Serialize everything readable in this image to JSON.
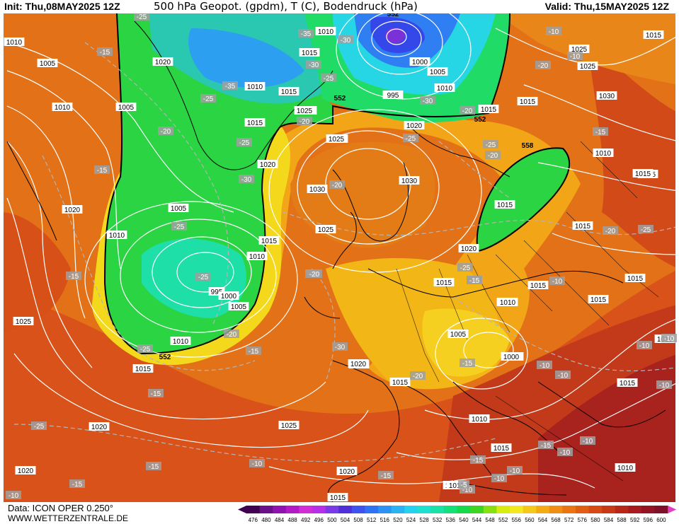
{
  "header": {
    "init": "Init: Thu,08MAY2025 12Z",
    "title": "500 hPa Geopot. (gpdm), T (C), Bodendruck (hPa)",
    "valid": "Valid: Thu,15MAY2025 12Z"
  },
  "footer": {
    "data_source": "Data: ICON OPER 0.250°",
    "website": "WWW.WETTERZENTRALE.DE"
  },
  "colorbar": {
    "ticks": [
      "476",
      "480",
      "484",
      "488",
      "492",
      "496",
      "500",
      "504",
      "508",
      "512",
      "516",
      "520",
      "524",
      "528",
      "532",
      "536",
      "540",
      "544",
      "548",
      "552",
      "556",
      "560",
      "564",
      "568",
      "572",
      "576",
      "580",
      "584",
      "588",
      "592",
      "596",
      "600"
    ],
    "colors": [
      "#400050",
      "#6b0f8a",
      "#9012b0",
      "#b21ac8",
      "#d22ed8",
      "#b82fe8",
      "#7b3ae8",
      "#4f2fd8",
      "#3d52ee",
      "#2f72f4",
      "#2c93f5",
      "#2ab2f3",
      "#27d0ee",
      "#1fe0d0",
      "#1ae2a6",
      "#15df78",
      "#18d84c",
      "#3ed422",
      "#88e010",
      "#d8ec12",
      "#f4e820",
      "#f5c81a",
      "#f5ab16",
      "#f08f14",
      "#ea7514",
      "#e25e14",
      "#d74a14",
      "#c83a16",
      "#b82818",
      "#a71a1e",
      "#941424",
      "#800f2a"
    ]
  },
  "map": {
    "pressure_labels": [
      "995",
      "1010",
      "1015",
      "1020",
      "1000",
      "1005",
      "1015",
      "1010",
      "1015",
      "1010",
      "1015",
      "1025",
      "1030",
      "1030",
      "1025",
      "1020",
      "1020",
      "1015",
      "1025",
      "1030",
      "1025",
      "1015",
      "1010",
      "1020",
      "1025",
      "1015",
      "1010",
      "995",
      "1000",
      "1005",
      "1010",
      "1015",
      "1020",
      "1025",
      "1020",
      "1025",
      "1020",
      "1015",
      "1015",
      "1010",
      "1020",
      "1005",
      "1015",
      "1000",
      "1015",
      "1010",
      "1010",
      "1015",
      "1025",
      "1020",
      "1015",
      "1015",
      "1010",
      "1015",
      "1010",
      "1015",
      "1010",
      "1000",
      "1005",
      "1010",
      "1005",
      "1005",
      "1010",
      "1015",
      "1020",
      "1020",
      "1015",
      "1005",
      "1010",
      "1015",
      "1020",
      "1015",
      "1020",
      "1015",
      "1010",
      "1015",
      "1020",
      "1025",
      "1010",
      "1015",
      "1015"
    ],
    "temperature_labels": [
      "-25",
      "-35",
      "-30",
      "-15",
      "-25",
      "-30",
      "-25",
      "-20",
      "-25",
      "-20",
      "-30",
      "-25",
      "-35",
      "-30",
      "-20",
      "-20",
      "-25",
      "-20",
      "-25",
      "-20",
      "-25",
      "-30",
      "-25",
      "-20",
      "-25",
      "-25",
      "-20",
      "-15",
      "-15",
      "-20",
      "-15",
      "-15",
      "-20",
      "-25",
      "-30",
      "-15",
      "-15",
      "-10",
      "-15",
      "-10",
      "-15",
      "-15",
      "-10",
      "-10",
      "-10",
      "-10",
      "-15",
      "-10",
      "-10",
      "-10",
      "-10",
      "-10",
      "-10",
      "-5",
      "-10",
      "-15",
      "-10",
      "-20",
      "-15",
      "-10"
    ],
    "geopotential_labels": [
      "552",
      "552",
      "552",
      "558",
      "552"
    ]
  }
}
